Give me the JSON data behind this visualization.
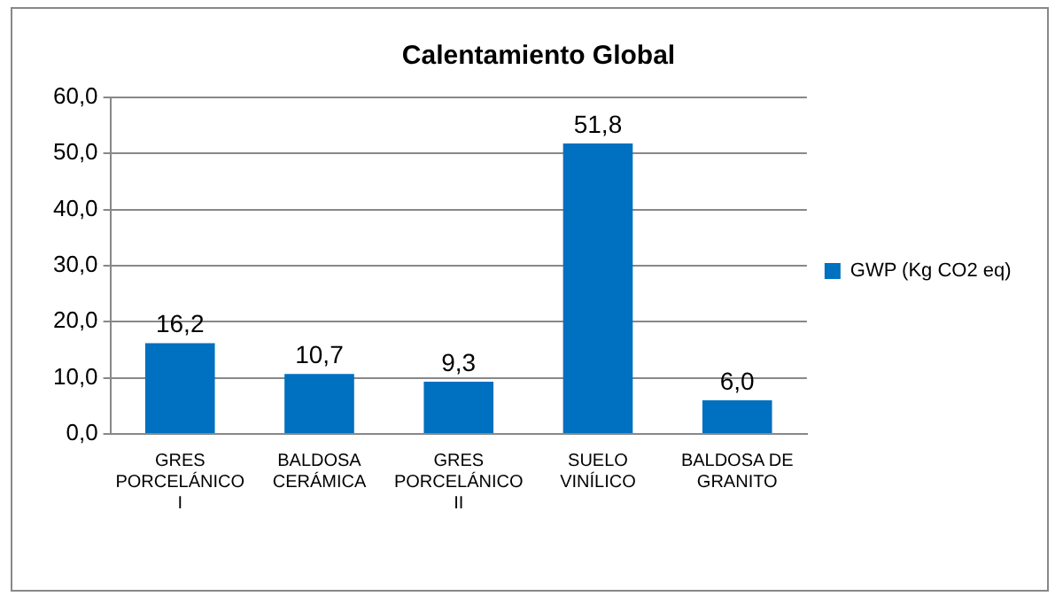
{
  "chart_data": {
    "type": "bar",
    "title": "Calentamiento Global",
    "categories": [
      "GRES PORCELÁNICO I",
      "BALDOSA CERÁMICA",
      "GRES PORCELÁNICO II",
      "SUELO VINÍLICO",
      "BALDOSA DE GRANITO"
    ],
    "series": [
      {
        "name": "GWP (Kg CO2 eq)",
        "color": "#0070c0",
        "values": [
          16.2,
          10.7,
          9.3,
          51.8,
          6.0
        ],
        "value_labels": [
          "16,2",
          "10,7",
          "9,3",
          "51,8",
          "6,0"
        ]
      }
    ],
    "ylim": [
      0,
      60
    ],
    "yticks": [
      {
        "value": 0,
        "label": "0,0"
      },
      {
        "value": 10,
        "label": "10,0"
      },
      {
        "value": 20,
        "label": "20,0"
      },
      {
        "value": 30,
        "label": "30,0"
      },
      {
        "value": 40,
        "label": "40,0"
      },
      {
        "value": 50,
        "label": "50,0"
      },
      {
        "value": 60,
        "label": "60,0"
      }
    ],
    "grid": "y",
    "legend": "right"
  }
}
